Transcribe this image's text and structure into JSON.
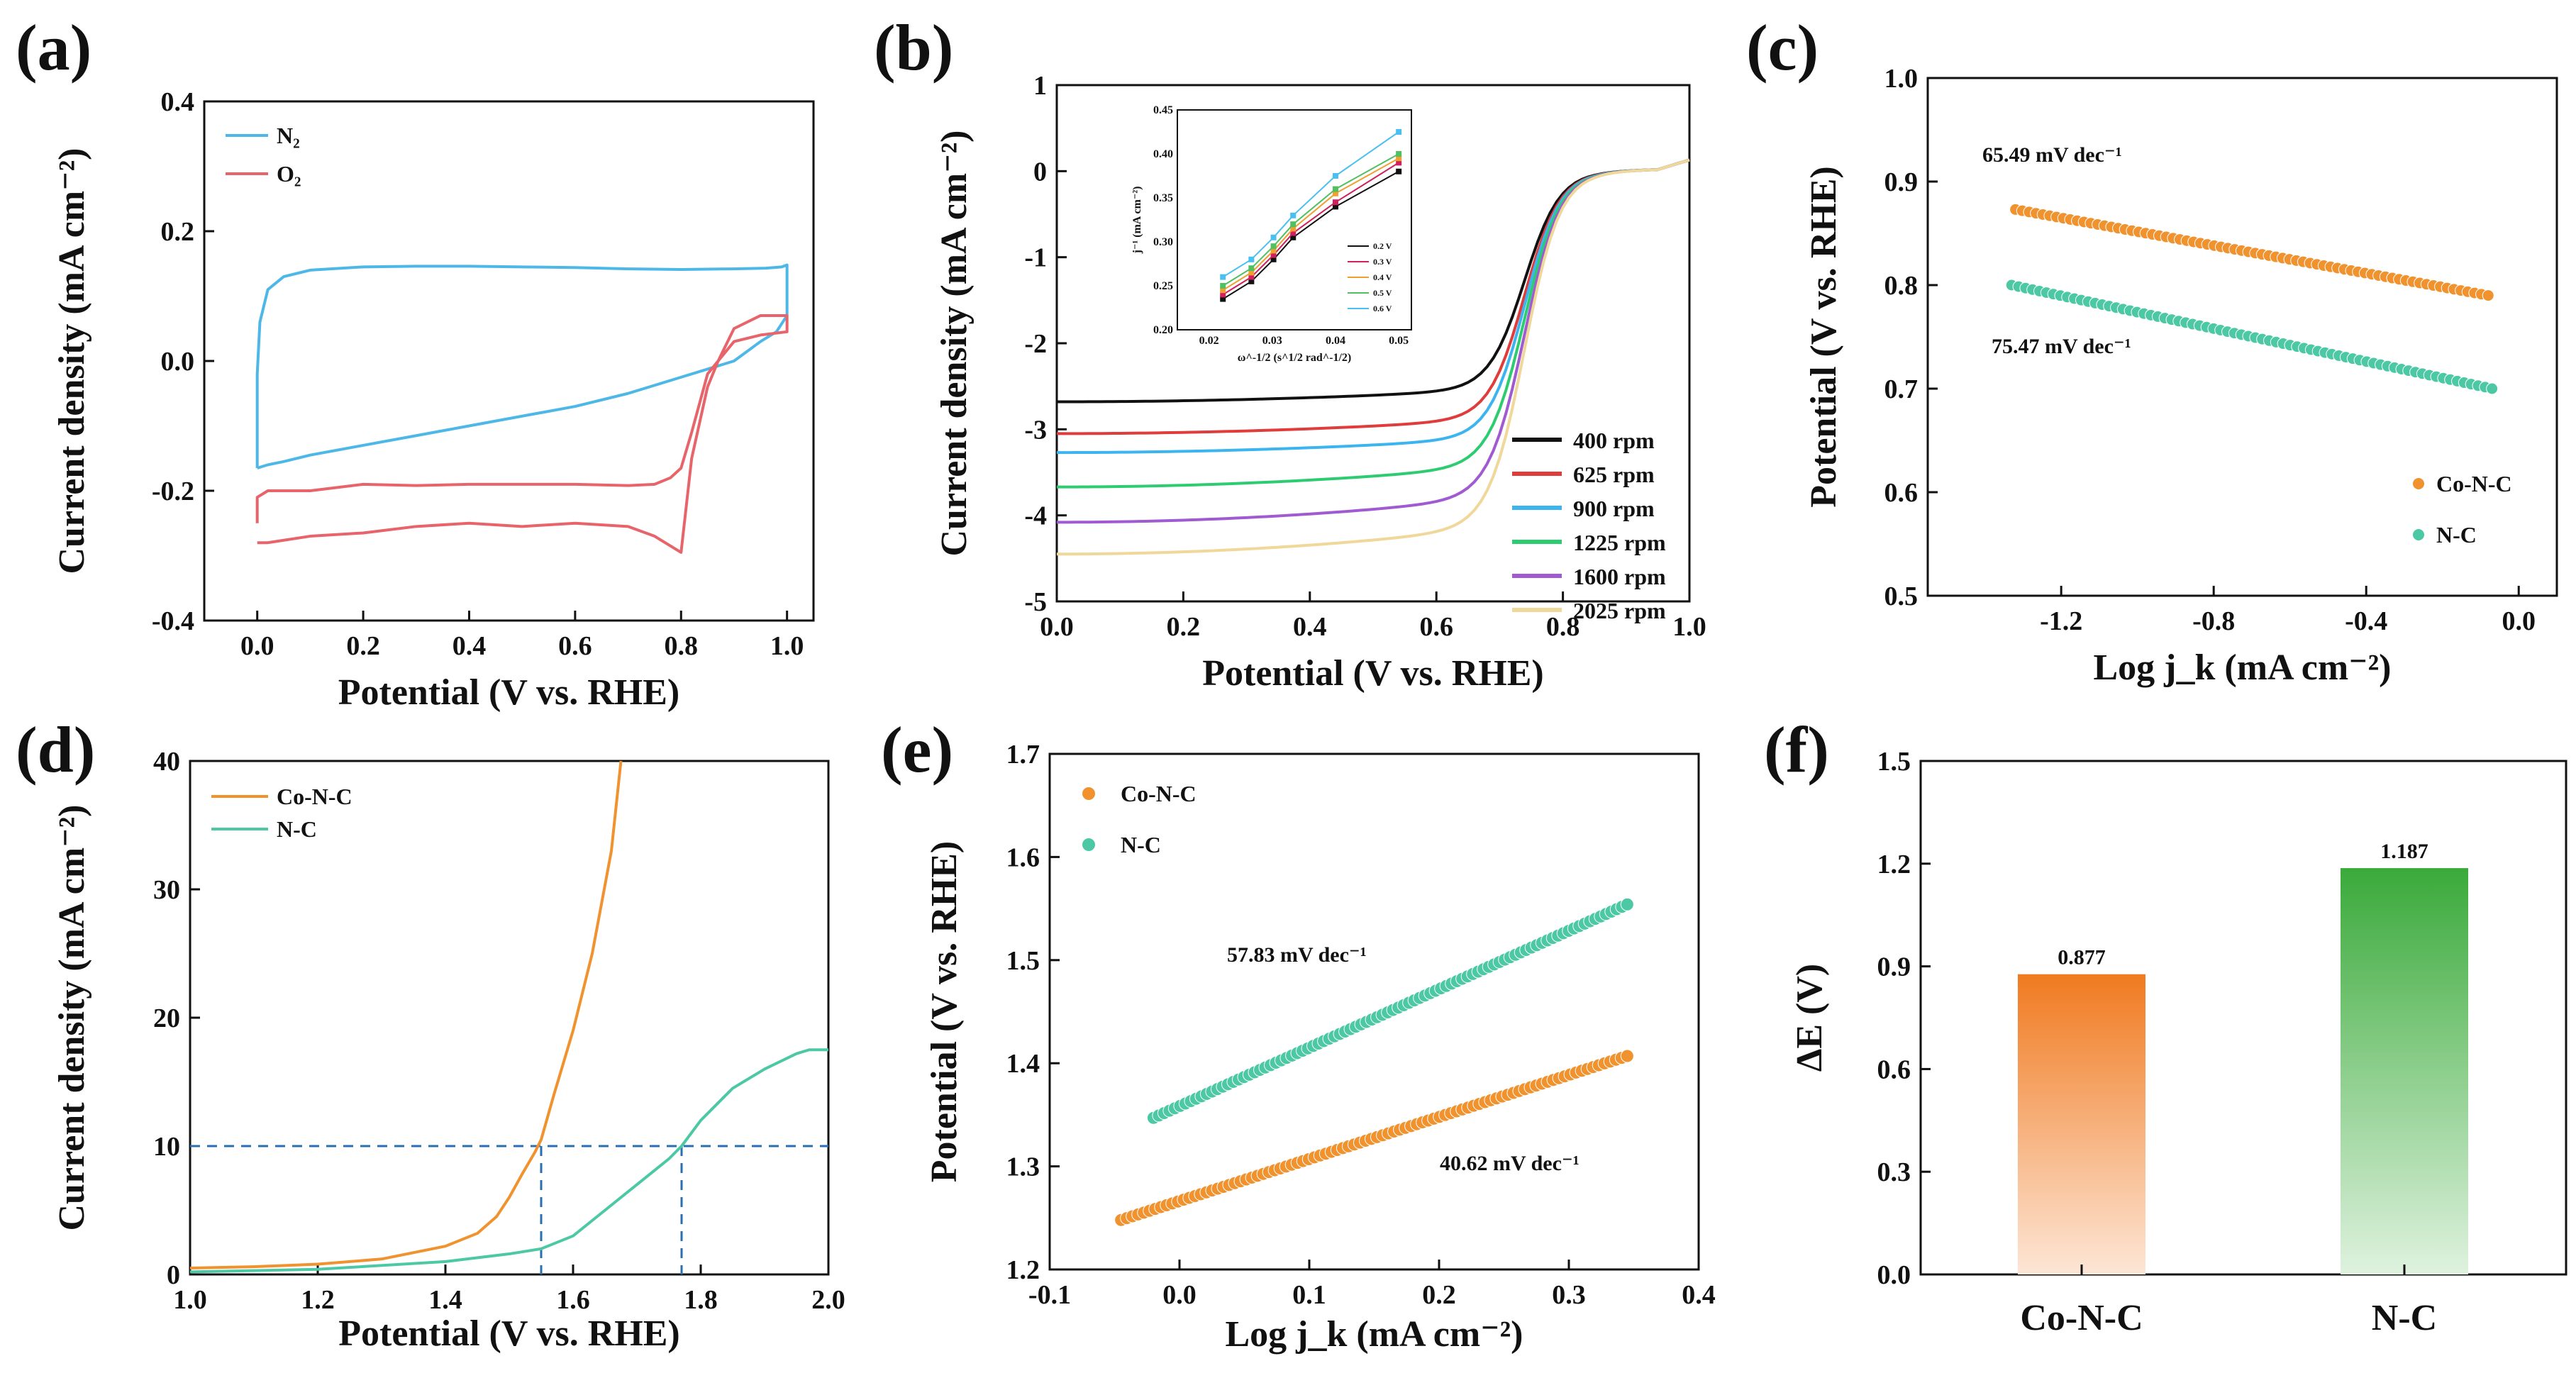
{
  "figure": {
    "panel_labels": [
      "(a)",
      "(b)",
      "(c)",
      "(d)",
      "(e)",
      "(f)"
    ]
  },
  "chart_data": [
    {
      "id": "a",
      "type": "line",
      "xlabel": "Potential (V vs. RHE)",
      "ylabel": "Current density (mA cm⁻²)",
      "xlim": [
        -0.1,
        1.05
      ],
      "ylim": [
        -0.4,
        0.4
      ],
      "xticks": [
        0.0,
        0.2,
        0.4,
        0.6,
        0.8,
        1.0
      ],
      "xtick_labels": [
        "0.0",
        "0.2",
        "0.4",
        "0.6",
        "0.8",
        "1.0"
      ],
      "yticks": [
        -0.4,
        -0.2,
        0.0,
        0.2,
        0.4
      ],
      "ytick_labels": [
        "-0.4",
        "-0.2",
        "0.0",
        "0.2",
        "0.4"
      ],
      "legend": {
        "position": "top-left"
      },
      "series": [
        {
          "name": "N₂",
          "color": "#4db8e8",
          "x": [
            0.0,
            0.0,
            0.005,
            0.02,
            0.05,
            0.1,
            0.2,
            0.3,
            0.4,
            0.5,
            0.6,
            0.7,
            0.8,
            0.9,
            0.96,
            0.99,
            1.0,
            1.0,
            0.98,
            0.95,
            0.9,
            0.8,
            0.7,
            0.6,
            0.5,
            0.4,
            0.3,
            0.2,
            0.1,
            0.05,
            0.02,
            0.0
          ],
          "y": [
            -0.165,
            -0.02,
            0.06,
            0.11,
            0.13,
            0.14,
            0.145,
            0.146,
            0.146,
            0.145,
            0.144,
            0.142,
            0.141,
            0.142,
            0.143,
            0.145,
            0.148,
            0.07,
            0.045,
            0.03,
            0.0,
            -0.025,
            -0.05,
            -0.07,
            -0.085,
            -0.1,
            -0.115,
            -0.13,
            -0.145,
            -0.155,
            -0.16,
            -0.165
          ]
        },
        {
          "name": "O₂",
          "color": "#e8646b",
          "x": [
            0.0,
            0.0,
            0.02,
            0.1,
            0.2,
            0.3,
            0.4,
            0.5,
            0.6,
            0.7,
            0.75,
            0.78,
            0.8,
            0.82,
            0.85,
            0.9,
            0.95,
            1.0,
            1.0,
            0.95,
            0.9,
            0.87,
            0.85,
            0.82,
            0.8,
            0.75,
            0.7,
            0.6,
            0.5,
            0.4,
            0.3,
            0.2,
            0.1,
            0.02,
            0.0
          ],
          "y": [
            -0.25,
            -0.21,
            -0.2,
            -0.2,
            -0.19,
            -0.192,
            -0.19,
            -0.19,
            -0.19,
            -0.192,
            -0.19,
            -0.18,
            -0.165,
            -0.11,
            -0.02,
            0.03,
            0.04,
            0.045,
            0.07,
            0.07,
            0.05,
            0.0,
            -0.04,
            -0.15,
            -0.295,
            -0.27,
            -0.255,
            -0.25,
            -0.255,
            -0.25,
            -0.255,
            -0.265,
            -0.27,
            -0.28,
            -0.28
          ]
        }
      ]
    },
    {
      "id": "b",
      "type": "line",
      "xlabel": "Potential (V vs. RHE)",
      "ylabel": "Current density (mA cm⁻²)",
      "xlim": [
        0.0,
        1.0
      ],
      "ylim": [
        -5,
        1
      ],
      "xticks": [
        0.0,
        0.2,
        0.4,
        0.6,
        0.8,
        1.0
      ],
      "xtick_labels": [
        "0.0",
        "0.2",
        "0.4",
        "0.6",
        "0.8",
        "1.0"
      ],
      "yticks": [
        -5,
        -4,
        -3,
        -2,
        -1,
        0,
        1
      ],
      "ytick_labels": [
        "-5",
        "-4",
        "-3",
        "-2",
        "-1",
        "0",
        "1"
      ],
      "legend": {
        "position": "bottom-right"
      },
      "series": [
        {
          "name": "400 rpm",
          "color": "#111111",
          "plateau": -2.68,
          "slope": 0.3
        },
        {
          "name": "625 rpm",
          "color": "#e03c3c",
          "plateau": -3.05,
          "slope": 0.35
        },
        {
          "name": "900 rpm",
          "color": "#3cb4f0",
          "plateau": -3.27,
          "slope": 0.35
        },
        {
          "name": "1225 rpm",
          "color": "#2ecc71",
          "plateau": -3.67,
          "slope": 0.5
        },
        {
          "name": "1600 rpm",
          "color": "#a05ad2",
          "plateau": -4.08,
          "slope": 0.6
        },
        {
          "name": "2025 rpm",
          "color": "#f0d79a",
          "plateau": -4.45,
          "slope": 0.65
        }
      ],
      "inset": {
        "xlabel": "ω^-1/2 (s^1/2 rad^-1/2)",
        "ylabel": "j⁻¹ (mA cm⁻²)",
        "xlim": [
          0.015,
          0.052
        ],
        "ylim": [
          0.2,
          0.45
        ],
        "xticks": [
          0.02,
          0.03,
          0.04,
          0.05
        ],
        "xtick_labels": [
          "0.02",
          "0.03",
          "0.04",
          "0.05"
        ],
        "yticks": [
          0.2,
          0.25,
          0.3,
          0.35,
          0.4,
          0.45
        ],
        "ytick_labels": [
          "0.20",
          "0.25",
          "0.30",
          "0.35",
          "0.40",
          "0.45"
        ],
        "x": [
          0.0222,
          0.0267,
          0.0302,
          0.0333,
          0.04,
          0.05
        ],
        "series": [
          {
            "name": "0.2 V",
            "color": "#111111",
            "values": [
              0.235,
              0.255,
              0.28,
              0.305,
              0.34,
              0.38
            ]
          },
          {
            "name": "0.3 V",
            "color": "#d02060",
            "values": [
              0.24,
              0.26,
              0.285,
              0.31,
              0.345,
              0.39
            ]
          },
          {
            "name": "0.4 V",
            "color": "#f0a030",
            "values": [
              0.245,
              0.265,
              0.29,
              0.315,
              0.355,
              0.395
            ]
          },
          {
            "name": "0.5 V",
            "color": "#50c060",
            "values": [
              0.25,
              0.27,
              0.295,
              0.32,
              0.36,
              0.4
            ]
          },
          {
            "name": "0.6 V",
            "color": "#4ac0f0",
            "values": [
              0.26,
              0.28,
              0.305,
              0.33,
              0.375,
              0.425
            ]
          }
        ]
      }
    },
    {
      "id": "c",
      "type": "scatter",
      "xlabel": "Log j_k (mA cm⁻²)",
      "ylabel": "Potential (V vs. RHE)",
      "xlim": [
        -1.55,
        0.1
      ],
      "ylim": [
        0.5,
        1.0
      ],
      "xticks": [
        -1.2,
        -0.8,
        -0.4,
        0.0
      ],
      "xtick_labels": [
        "-1.2",
        "-0.8",
        "-0.4",
        "0.0"
      ],
      "yticks": [
        0.5,
        0.6,
        0.7,
        0.8,
        0.9,
        1.0
      ],
      "ytick_labels": [
        "0.5",
        "0.6",
        "0.7",
        "0.8",
        "0.9",
        "1.0"
      ],
      "legend": {
        "position": "bottom-right"
      },
      "annotations": [
        "65.49 mV dec⁻¹",
        "75.47 mV dec⁻¹"
      ],
      "series": [
        {
          "name": "Co-N-C",
          "color": "#f0922e",
          "x_range": [
            -1.32,
            -0.08
          ],
          "y_range": [
            0.873,
            0.79
          ]
        },
        {
          "name": "N-C",
          "color": "#4cc9a4",
          "x_range": [
            -1.33,
            -0.07
          ],
          "y_range": [
            0.8,
            0.7
          ]
        }
      ]
    },
    {
      "id": "d",
      "type": "line",
      "xlabel": "Potential (V vs. RHE)",
      "ylabel": "Current density (mA cm⁻²)",
      "xlim": [
        1.0,
        2.0
      ],
      "ylim": [
        0,
        40
      ],
      "xticks": [
        1.0,
        1.2,
        1.4,
        1.6,
        1.8,
        2.0
      ],
      "xtick_labels": [
        "1.0",
        "1.2",
        "1.4",
        "1.6",
        "1.8",
        "2.0"
      ],
      "yticks": [
        0,
        10,
        20,
        30,
        40
      ],
      "ytick_labels": [
        "0",
        "10",
        "20",
        "30",
        "40"
      ],
      "legend": {
        "position": "top-left"
      },
      "reference_line_y": 10,
      "reference_x": [
        1.55,
        1.77
      ],
      "series": [
        {
          "name": "Co-N-C",
          "color": "#f0922e",
          "x": [
            1.0,
            1.1,
            1.2,
            1.3,
            1.4,
            1.45,
            1.48,
            1.5,
            1.52,
            1.54,
            1.55,
            1.57,
            1.6,
            1.63,
            1.66,
            1.675
          ],
          "y": [
            0.5,
            0.6,
            0.8,
            1.2,
            2.2,
            3.2,
            4.5,
            6.0,
            7.8,
            9.5,
            10.5,
            14,
            19,
            25,
            33,
            40
          ]
        },
        {
          "name": "N-C",
          "color": "#4cc9a4",
          "x": [
            1.0,
            1.2,
            1.4,
            1.5,
            1.55,
            1.6,
            1.65,
            1.7,
            1.75,
            1.77,
            1.8,
            1.85,
            1.9,
            1.95,
            1.97,
            2.0
          ],
          "y": [
            0.2,
            0.4,
            1.0,
            1.6,
            2.0,
            3.0,
            5.0,
            7.0,
            9.0,
            10.0,
            12.0,
            14.5,
            16.0,
            17.2,
            17.5,
            17.5
          ]
        }
      ]
    },
    {
      "id": "e",
      "type": "scatter",
      "xlabel": "Log j_k (mA cm⁻²)",
      "ylabel": "Potential (V vs. RHE)",
      "xlim": [
        -0.1,
        0.4
      ],
      "ylim": [
        1.2,
        1.7
      ],
      "xticks": [
        -0.1,
        0.0,
        0.1,
        0.2,
        0.3,
        0.4
      ],
      "xtick_labels": [
        "-0.1",
        "0.0",
        "0.1",
        "0.2",
        "0.3",
        "0.4"
      ],
      "yticks": [
        1.2,
        1.3,
        1.4,
        1.5,
        1.6,
        1.7
      ],
      "ytick_labels": [
        "1.2",
        "1.3",
        "1.4",
        "1.5",
        "1.6",
        "1.7"
      ],
      "legend": {
        "position": "top-left"
      },
      "annotations": [
        "57.83 mV dec⁻¹",
        "40.62 mV dec⁻¹"
      ],
      "series": [
        {
          "name": "Co-N-C",
          "color": "#f0922e",
          "x_range": [
            -0.045,
            0.345
          ],
          "y_range": [
            1.248,
            1.407
          ]
        },
        {
          "name": "N-C",
          "color": "#4cc9a4",
          "x_range": [
            -0.02,
            0.345
          ],
          "y_range": [
            1.347,
            1.554
          ]
        }
      ]
    },
    {
      "id": "f",
      "type": "bar",
      "xlabel": "",
      "ylabel": "ΔE (V)",
      "categories": [
        "Co-N-C",
        "N-C"
      ],
      "values": [
        0.877,
        1.187
      ],
      "value_labels": [
        "0.877",
        "1.187"
      ],
      "colors": [
        "#f07a20",
        "#3aaa3a"
      ],
      "ylim": [
        0.0,
        1.5
      ],
      "yticks": [
        0.0,
        0.3,
        0.6,
        0.9,
        1.2,
        1.5
      ],
      "ytick_labels": [
        "0.0",
        "0.3",
        "0.6",
        "0.9",
        "1.2",
        "1.5"
      ]
    }
  ]
}
